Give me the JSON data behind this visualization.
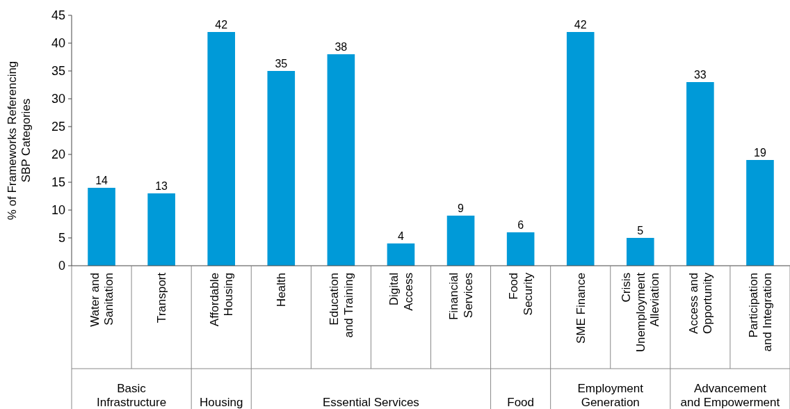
{
  "chart_data": {
    "type": "bar",
    "ylabel": "% of Frameworks Referencing\nSBP Categories",
    "categories": [
      "Water and\nSanitation",
      "Transport",
      "Affordable\nHousing",
      "Health",
      "Education\nand Training",
      "Digital\nAccess",
      "Financial\nServices",
      "Food\nSecurity",
      "SME Finance",
      "Crisis\nUnemployment\nAlleviation",
      "Access and\nOpportunity",
      "Participation\nand Integration"
    ],
    "values": [
      14,
      13,
      42,
      35,
      38,
      4,
      9,
      6,
      42,
      5,
      33,
      19
    ],
    "color": "#009ad8",
    "data_labels": true,
    "ylim": [
      0,
      45
    ],
    "yticks": [
      0,
      5,
      10,
      15,
      20,
      25,
      30,
      35,
      40,
      45
    ],
    "grid": false,
    "annotations": [
      "Basic\nInfrastructure",
      "Housing",
      "Essential Services",
      "Food",
      "Employment\nGeneration",
      "Advancement\nand Empowerment"
    ]
  }
}
